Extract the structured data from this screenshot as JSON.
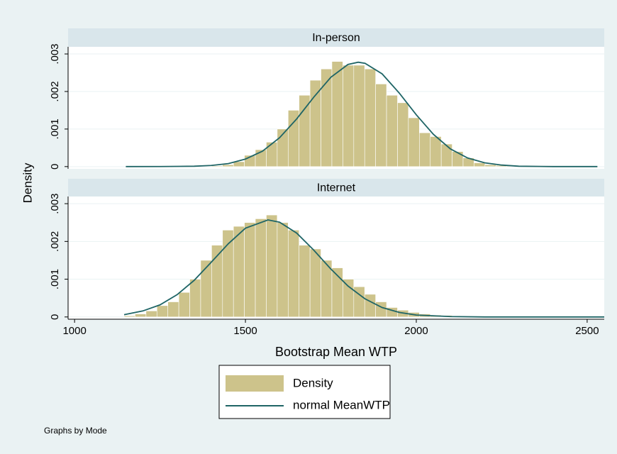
{
  "figure": {
    "ylabel": "Density",
    "xlabel": "Bootstrap Mean WTP",
    "note": "Graphs by Mode",
    "legend": [
      {
        "name": "Density",
        "color": "#cdc38b"
      },
      {
        "name": "normal MeanWTP",
        "color": "#1f6566"
      }
    ]
  },
  "chart_data": [
    {
      "type": "histogram",
      "title": "In-person",
      "bins": [
        1145,
        1177,
        1209,
        1241,
        1273,
        1305,
        1337,
        1369,
        1401,
        1433,
        1465,
        1497,
        1529,
        1561,
        1593,
        1625,
        1657,
        1689,
        1721,
        1753,
        1785,
        1817,
        1849,
        1881,
        1913,
        1945,
        1977,
        2009,
        2041,
        2073,
        2105,
        2137,
        2169,
        2201,
        2233,
        2265,
        2297,
        2329,
        2361,
        2393,
        2425,
        2457,
        2489,
        2521,
        2553
      ],
      "values": [
        0,
        0,
        0,
        0,
        0,
        0,
        0,
        1e-05,
        2e-05,
        5e-05,
        0.00013,
        0.0003,
        0.00045,
        0.00065,
        0.001,
        0.0015,
        0.0019,
        0.0023,
        0.0026,
        0.0028,
        0.0027,
        0.0027,
        0.0026,
        0.0022,
        0.0019,
        0.0017,
        0.0013,
        0.0009,
        0.0008,
        0.0006,
        0.0004,
        0.00023,
        0.0001,
        5e-05,
        3e-05,
        2e-05,
        1e-05,
        0,
        0,
        0,
        0,
        0,
        0,
        0
      ],
      "curve": {
        "x": [
          1150,
          1250,
          1350,
          1400,
          1450,
          1500,
          1550,
          1600,
          1650,
          1700,
          1750,
          1800,
          1830,
          1850,
          1900,
          1950,
          2000,
          2050,
          2100,
          2150,
          2200,
          2250,
          2300,
          2400,
          2530
        ],
        "values": [
          0,
          1e-06,
          1e-05,
          3e-05,
          8e-05,
          0.0002,
          0.00041,
          0.00077,
          0.00127,
          0.00185,
          0.00238,
          0.00272,
          0.00278,
          0.00275,
          0.00247,
          0.00196,
          0.00138,
          0.00086,
          0.00047,
          0.00023,
          0.0001,
          4e-05,
          1e-05,
          0,
          0
        ]
      },
      "xlim": [
        981,
        2550
      ],
      "ylim": [
        -6e-05,
        0.00319
      ],
      "yticks": [
        0,
        {
          "value": 0.001,
          "label": ".001"
        },
        {
          "value": 0.002,
          "label": ".002"
        },
        {
          "value": 0.003,
          "label": ".003"
        }
      ],
      "grid": true
    },
    {
      "type": "histogram",
      "title": "Internet",
      "bins": [
        1145,
        1177,
        1209,
        1241,
        1273,
        1305,
        1337,
        1369,
        1401,
        1433,
        1465,
        1497,
        1529,
        1561,
        1593,
        1625,
        1657,
        1689,
        1721,
        1753,
        1785,
        1817,
        1849,
        1881,
        1913,
        1945,
        1977,
        2009,
        2041,
        2073,
        2105,
        2137,
        2169,
        2201,
        2233,
        2265,
        2297,
        2329,
        2361,
        2393,
        2425,
        2457,
        2489,
        2521,
        2553
      ],
      "values": [
        3e-05,
        8e-05,
        0.00016,
        0.0003,
        0.0004,
        0.00065,
        0.001,
        0.0015,
        0.0019,
        0.0023,
        0.0024,
        0.0025,
        0.0026,
        0.0027,
        0.0025,
        0.0023,
        0.0019,
        0.0018,
        0.0015,
        0.0013,
        0.001,
        0.0008,
        0.0006,
        0.0004,
        0.00025,
        0.00018,
        0.00012,
        8e-05,
        5e-05,
        4e-05,
        2e-05,
        1e-05,
        0,
        0,
        0,
        0,
        0,
        0,
        0,
        0,
        0,
        0,
        0,
        0
      ],
      "curve": {
        "x": [
          1145,
          1200,
          1250,
          1300,
          1350,
          1400,
          1450,
          1500,
          1566,
          1600,
          1650,
          1700,
          1750,
          1800,
          1850,
          1900,
          1950,
          2000,
          2100,
          2200,
          2550
        ],
        "values": [
          6e-05,
          0.00016,
          0.00032,
          0.00059,
          0.00097,
          0.00145,
          0.00194,
          0.00235,
          0.00257,
          0.00251,
          0.00222,
          0.00177,
          0.00127,
          0.00082,
          0.00048,
          0.00025,
          0.00012,
          5e-05,
          1e-05,
          0,
          0
        ]
      },
      "xlim": [
        981,
        2550
      ],
      "ylim": [
        -6e-05,
        0.00319
      ],
      "xticks": [
        1000,
        1500,
        2000,
        2500
      ],
      "yticks": [
        0,
        {
          "value": 0.001,
          "label": ".001"
        },
        {
          "value": 0.002,
          "label": ".002"
        },
        {
          "value": 0.003,
          "label": ".003"
        }
      ],
      "grid": true
    }
  ]
}
